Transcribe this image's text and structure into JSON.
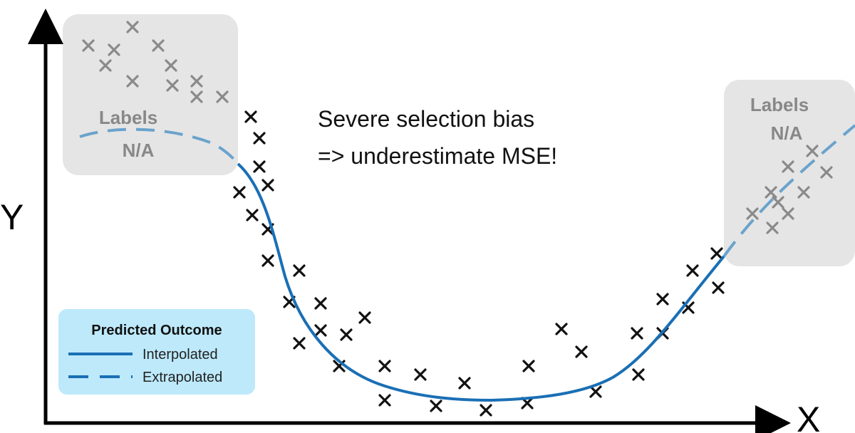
{
  "axes": {
    "x_label": "X",
    "y_label": "Y"
  },
  "annotation": {
    "line1": "Severe selection bias",
    "line2": "=> underestimate MSE!"
  },
  "unlabeled_regions": [
    {
      "line1": "Labels",
      "line2": "N/A"
    },
    {
      "line1": "Labels",
      "line2": "N/A"
    }
  ],
  "legend": {
    "title": "Predicted Outcome",
    "items": [
      {
        "label": "Interpolated",
        "style": "solid"
      },
      {
        "label": "Extrapolated",
        "style": "dashed"
      }
    ]
  },
  "colors": {
    "axis": "#000000",
    "curve": "#1a6fb5",
    "extrapolated_curve": "#6aa3cc",
    "labeled_marker": "#111111",
    "unlabeled_marker": "#8a8a8a",
    "region_fill": "#e5e5e5",
    "legend_fill": "#bde9fb"
  }
}
